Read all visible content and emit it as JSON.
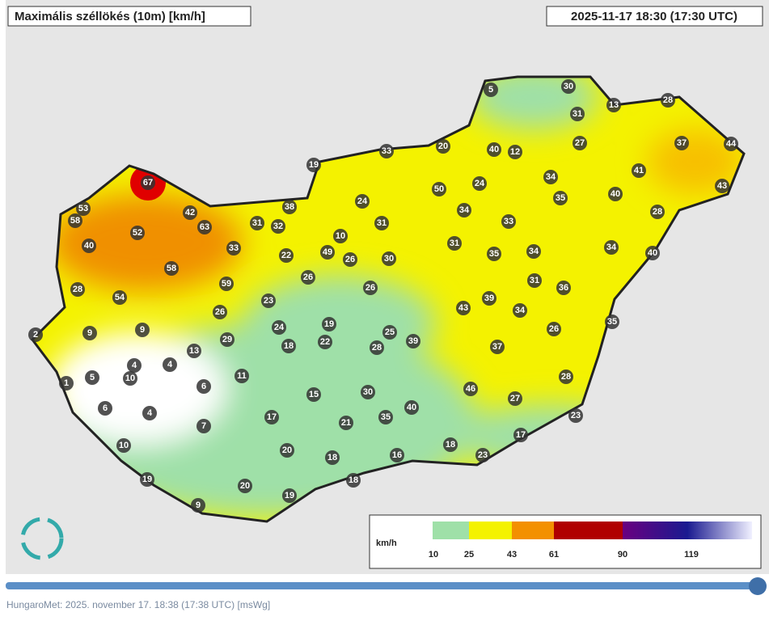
{
  "header": {
    "title": "Maximális széllökés (10m) [km/h]",
    "time": "2025-11-17 18:30 (17:30 UTC)"
  },
  "stations": [
    67,
    53,
    58,
    42,
    63,
    52,
    40,
    31,
    32,
    38,
    33,
    58,
    59,
    28,
    54,
    22,
    26,
    26,
    23,
    24,
    19,
    18,
    22,
    13,
    29,
    9,
    9,
    2,
    4,
    4,
    10,
    1,
    5,
    6,
    11,
    6,
    4,
    7,
    10,
    15,
    17,
    21,
    20,
    18,
    19,
    20,
    19,
    9,
    18,
    16,
    18,
    23,
    17,
    23,
    27,
    46,
    40,
    35,
    30,
    28,
    25,
    39,
    37,
    26,
    28,
    35,
    36,
    34,
    43,
    39,
    31,
    26,
    30,
    49,
    10,
    26,
    31,
    24,
    33,
    19,
    20,
    40,
    12,
    50,
    24,
    34,
    33,
    31,
    35,
    34,
    34,
    35,
    27,
    31,
    30,
    13,
    5,
    28,
    37,
    44,
    41,
    40,
    43,
    28,
    34,
    40
  ],
  "legend": {
    "unit": "km/h",
    "ticks": [
      10,
      25,
      43,
      61,
      90,
      119
    ]
  },
  "footer": "HungaroMet: 2025. november 17. 18:38 (17:38  UTC)  [msWg]"
}
